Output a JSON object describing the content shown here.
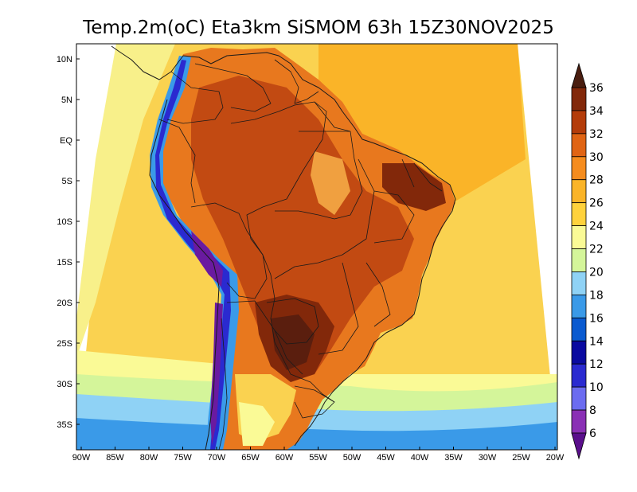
{
  "title": "Temp.2m(oC) Eta3km SiSMOM 63h 15Z30NOV2025",
  "map": {
    "variable": "2 m air temperature",
    "units": "oC",
    "model": "Eta3km",
    "lon_ticks": [
      "90W",
      "85W",
      "80W",
      "75W",
      "70W",
      "65W",
      "60W",
      "55W",
      "50W",
      "45W",
      "40W",
      "35W",
      "30W",
      "25W",
      "20W"
    ],
    "lat_ticks": [
      "10N",
      "5N",
      "EQ",
      "5S",
      "10S",
      "15S",
      "20S",
      "25S",
      "30S",
      "35S"
    ]
  },
  "colorbar": {
    "labels": [
      "6",
      "8",
      "10",
      "12",
      "14",
      "16",
      "18",
      "20",
      "22",
      "24",
      "26",
      "28",
      "30",
      "32",
      "34",
      "36"
    ],
    "colors": [
      "#5a0f8c",
      "#8a30b5",
      "#6c6cf0",
      "#2a2ad0",
      "#0a0aa0",
      "#0a5ad0",
      "#3a9ae8",
      "#8fd2f5",
      "#d4f59a",
      "#fafa96",
      "#ffd23c",
      "#fab428",
      "#f58c1e",
      "#e06414",
      "#b43c0a",
      "#82280a",
      "#4a1e10"
    ]
  }
}
